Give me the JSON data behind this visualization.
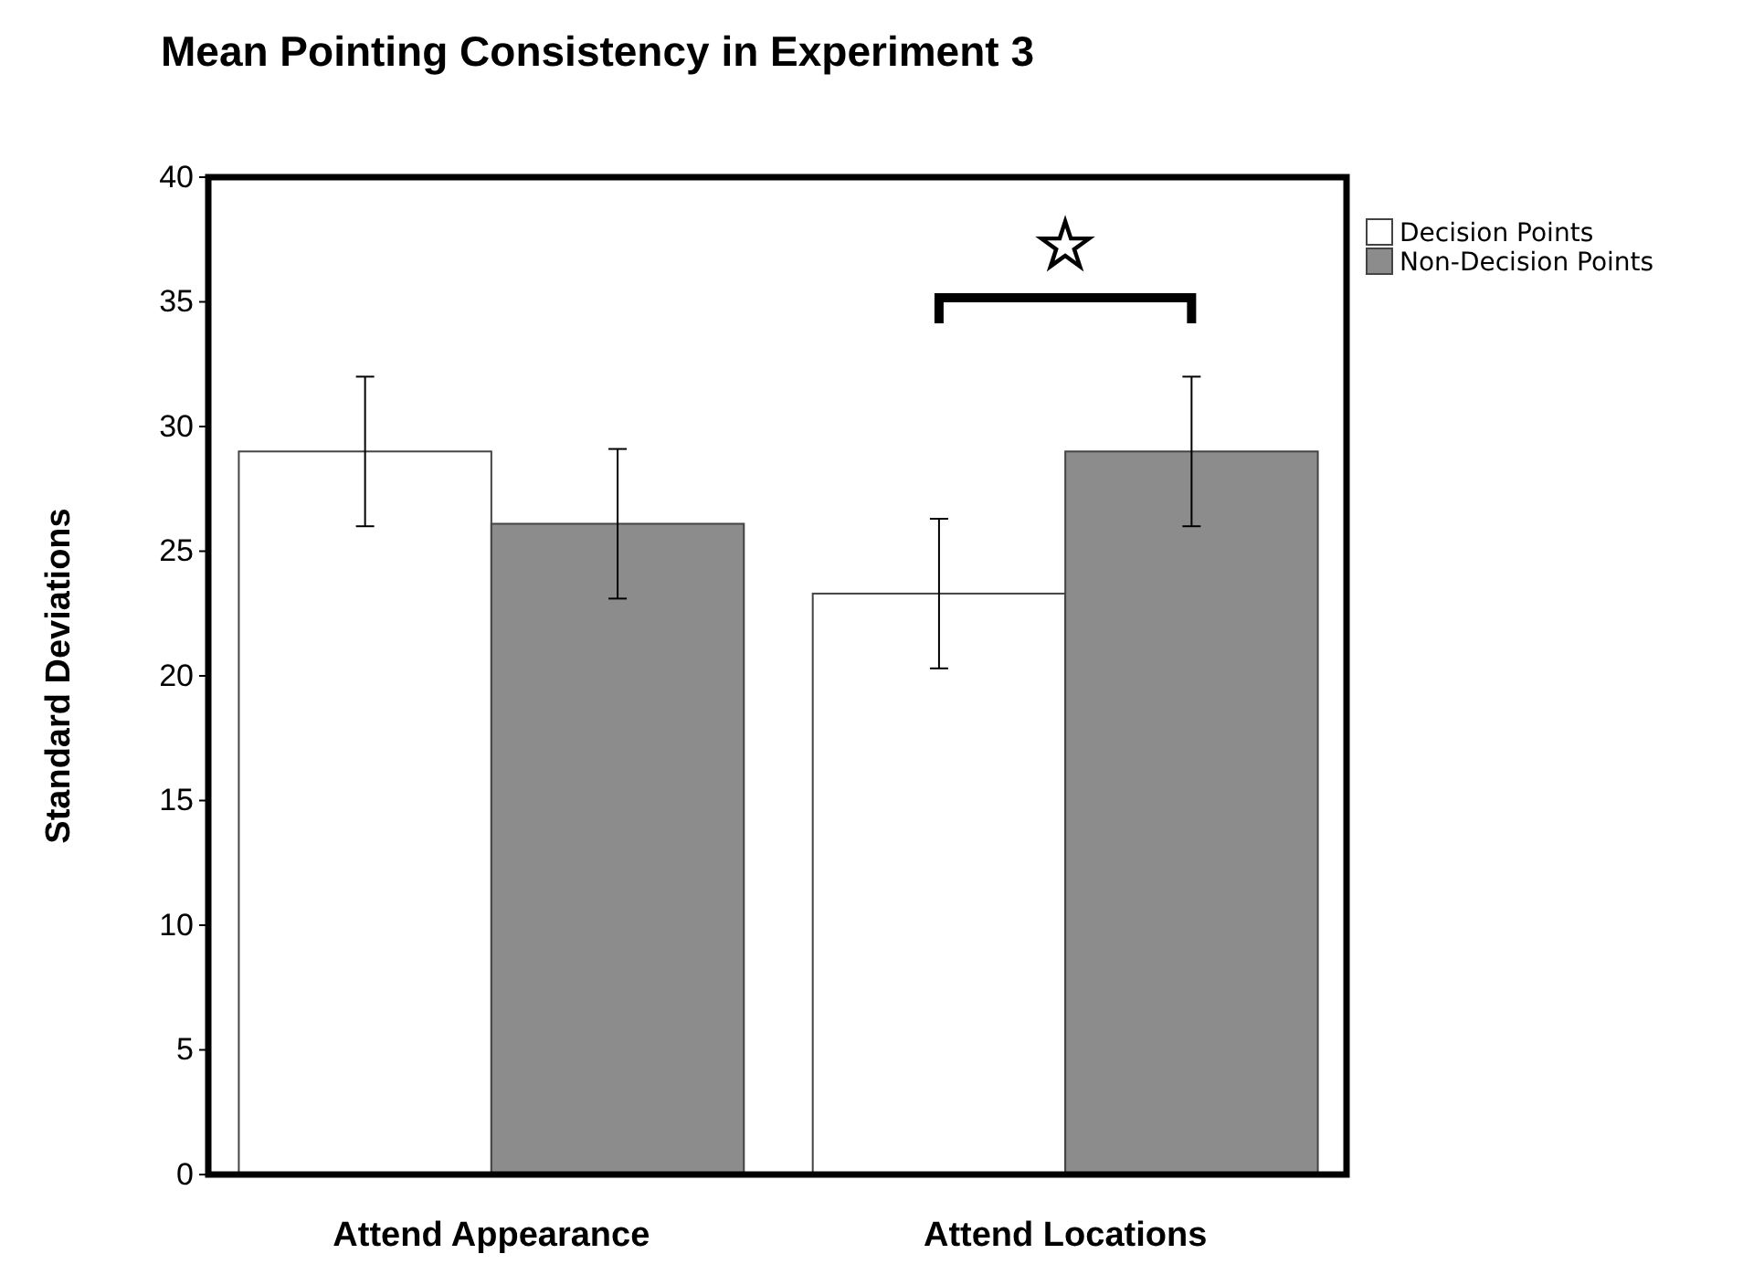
{
  "chart_data": {
    "type": "bar",
    "title": "Mean Pointing Consistency in Experiment 3",
    "ylabel": "Standard Deviations",
    "categories": [
      "Attend Appearance",
      "Attend Locations"
    ],
    "series": [
      {
        "name": "Decision Points",
        "color": "#ffffff",
        "values": [
          29,
          23.3
        ],
        "errors": [
          3,
          3
        ]
      },
      {
        "name": "Non-Decision Points",
        "color": "#8c8c8c",
        "values": [
          26.1,
          29
        ],
        "errors": [
          3,
          3
        ]
      }
    ],
    "ylim": [
      0,
      40
    ],
    "yticks": [
      0,
      5,
      10,
      15,
      20,
      25,
      30,
      35,
      40
    ],
    "grid": false,
    "legend": "top right",
    "annotations": [
      "☆"
    ]
  }
}
